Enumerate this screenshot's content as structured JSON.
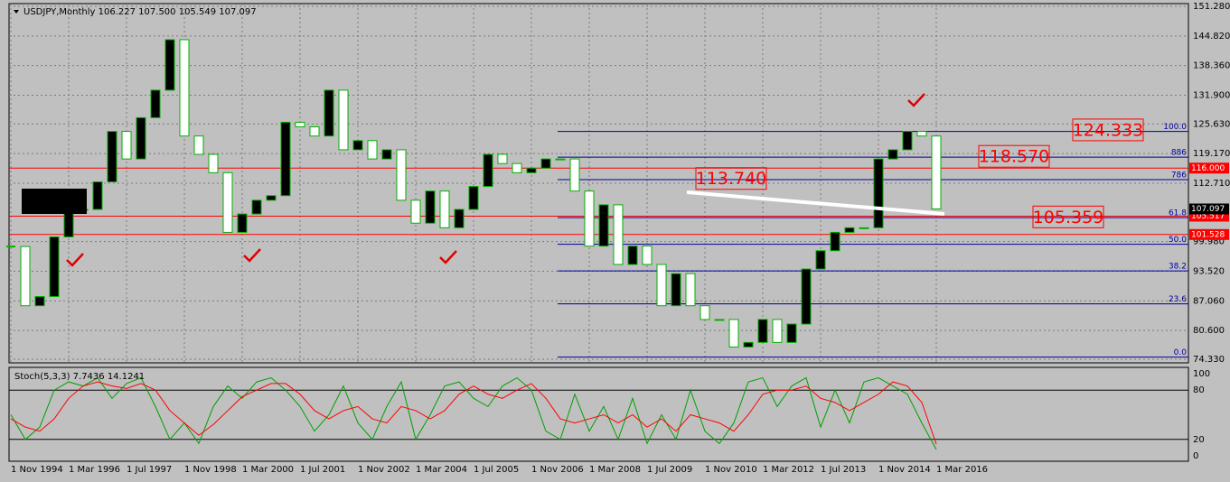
{
  "chart_data": [
    {
      "type": "candlestick",
      "title": "USDJPY,Monthly",
      "quote": "106.227 107.500 105.549 107.097",
      "categories": [
        "1 Nov 1994",
        null,
        null,
        null,
        "1 Mar 1996",
        null,
        null,
        null,
        "1 Jul 1997",
        null,
        null,
        null,
        "1 Nov 1998",
        null,
        null,
        null,
        "1 Mar 2000",
        null,
        null,
        null,
        "1 Jul 2001",
        null,
        null,
        null,
        "1 Nov 2002",
        null,
        null,
        null,
        "1 Mar 2004",
        null,
        null,
        null,
        "1 Jul 2005",
        null,
        null,
        null,
        "1 Nov 2006",
        null,
        null,
        null,
        "1 Mar 2008",
        null,
        null,
        null,
        "1 Jul 2009",
        null,
        null,
        null,
        "1 Nov 2010",
        null,
        null,
        null,
        "1 Mar 2012",
        null,
        null,
        null,
        "1 Jul 2013",
        null,
        null,
        null,
        "1 Nov 2014",
        null,
        null,
        null,
        "1 Mar 2016"
      ],
      "values": [
        98.9,
        86,
        88,
        101,
        107,
        107,
        113,
        124,
        118,
        127,
        133,
        144,
        123,
        119,
        115,
        102,
        106,
        109,
        110,
        126,
        125,
        123,
        133,
        120,
        122,
        118,
        120,
        109,
        104,
        111,
        103,
        107,
        112,
        119,
        117,
        115,
        116,
        118,
        118,
        111,
        99,
        108,
        95,
        99,
        95,
        86,
        93,
        86,
        83,
        83,
        77,
        78,
        83,
        78,
        82,
        94,
        98,
        102,
        103,
        103,
        118,
        120,
        124,
        123,
        107.1
      ],
      "up_color": "#000000",
      "down_color": "#ffffff",
      "wick_color": "#00b000",
      "ylim": [
        74.33,
        151.28
      ],
      "yticks": [
        {
          "value": 151.28,
          "label": "151.280"
        },
        {
          "value": 144.82,
          "label": "144.820"
        },
        {
          "value": 138.36,
          "label": "138.360"
        },
        {
          "value": 131.9,
          "label": "131.900"
        },
        {
          "value": 125.63,
          "label": "125.630"
        },
        {
          "value": 119.17,
          "label": "119.170"
        },
        {
          "value": 112.71,
          "label": "112.710"
        },
        {
          "value": 99.98,
          "label": "99.980"
        },
        {
          "value": 93.52,
          "label": "93.520"
        },
        {
          "value": 87.06,
          "label": "87.060"
        },
        {
          "value": 80.6,
          "label": "80.600"
        },
        {
          "value": 74.33,
          "label": "74.330"
        }
      ],
      "grid": true,
      "price_lines": [
        {
          "value": 116.0,
          "label": "116.000",
          "color": "#ff0000"
        },
        {
          "value": 105.517,
          "label": "105.517",
          "color": "#ff0000"
        },
        {
          "value": 101.528,
          "label": "101.528",
          "color": "#ff0000"
        },
        {
          "value": 107.097,
          "label": "107.097",
          "color": "#000000"
        }
      ],
      "fib_color": "#0000a0",
      "fib_levels": [
        {
          "value": 124.0,
          "label": "100.0"
        },
        {
          "value": 118.4,
          "label": "886"
        },
        {
          "value": 113.5,
          "label": "786"
        },
        {
          "value": 105.2,
          "label": "61.8"
        },
        {
          "value": 99.4,
          "label": "50.0"
        },
        {
          "value": 93.6,
          "label": "38.2"
        },
        {
          "value": 86.4,
          "label": "23.6"
        },
        {
          "value": 74.8,
          "label": "0.0"
        }
      ],
      "annotations": [
        {
          "value": 124.333,
          "label": "124.333"
        },
        {
          "value": 118.57,
          "label": "118.570"
        },
        {
          "value": 113.74,
          "label": "113.740"
        },
        {
          "value": 105.359,
          "label": "105.359"
        }
      ]
    },
    {
      "type": "stochastic",
      "title": "Stoch(5,3,3) 7.7436 14.1241",
      "ylim": [
        0,
        100
      ],
      "yticks": [
        0,
        20,
        80,
        100
      ],
      "levels": [
        20,
        80
      ],
      "series": [
        {
          "name": "Main",
          "color": "#00a000",
          "values": [
            50,
            20,
            35,
            80,
            90,
            85,
            95,
            70,
            88,
            95,
            60,
            20,
            40,
            15,
            60,
            85,
            70,
            90,
            95,
            80,
            60,
            30,
            50,
            85,
            40,
            20,
            60,
            90,
            20,
            50,
            85,
            90,
            70,
            60,
            85,
            95,
            80,
            30,
            20,
            75,
            30,
            60,
            20,
            70,
            15,
            50,
            20,
            80,
            30,
            15,
            40,
            90,
            95,
            60,
            85,
            95,
            35,
            80,
            40,
            90,
            95,
            85,
            75,
            40,
            7.7436
          ]
        },
        {
          "name": "Signal",
          "color": "#ff0000",
          "values": [
            45,
            35,
            30,
            45,
            70,
            85,
            90,
            85,
            82,
            88,
            80,
            55,
            40,
            25,
            38,
            55,
            72,
            80,
            88,
            88,
            75,
            55,
            45,
            55,
            60,
            45,
            40,
            60,
            55,
            45,
            55,
            75,
            85,
            75,
            70,
            80,
            88,
            70,
            45,
            40,
            45,
            50,
            40,
            50,
            35,
            45,
            30,
            50,
            45,
            40,
            30,
            50,
            75,
            80,
            80,
            85,
            70,
            65,
            55,
            65,
            75,
            90,
            85,
            65,
            14.1241
          ]
        }
      ]
    }
  ]
}
